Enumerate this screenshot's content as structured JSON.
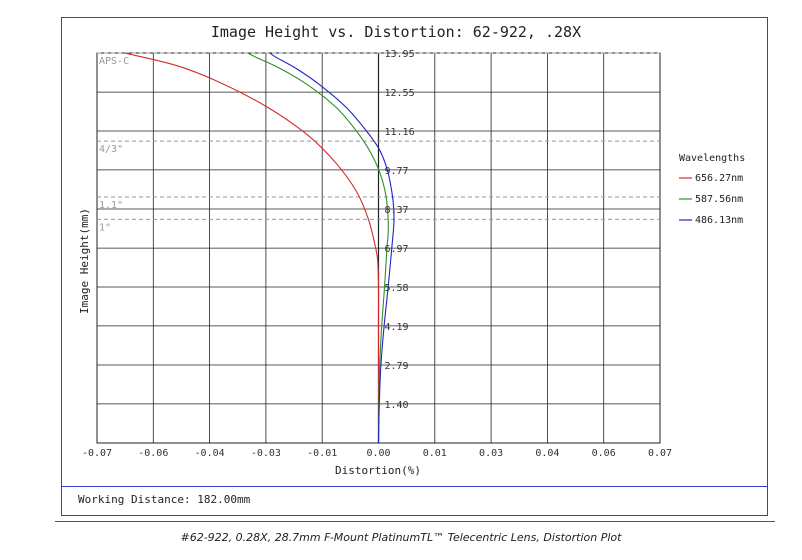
{
  "chart_data": {
    "type": "line",
    "title": "Image Height vs. Distortion: 62-922, .28X",
    "xlabel": "Distortion(%)",
    "ylabel": "Image Height(mm)",
    "xlim": [
      -0.07,
      0.07
    ],
    "ylim": [
      0,
      13.95
    ],
    "x_ticks": [
      -0.07,
      -0.06,
      -0.04,
      -0.03,
      -0.01,
      0.0,
      0.01,
      0.03,
      0.04,
      0.06,
      0.07
    ],
    "x_tick_labels": [
      "-0.07",
      "-0.06",
      "-0.04",
      "-0.03",
      "-0.01",
      "0.00",
      "0.01",
      "0.03",
      "0.04",
      "0.06",
      "0.07"
    ],
    "y_ticks": [
      1.4,
      2.79,
      4.19,
      5.58,
      6.97,
      8.37,
      9.77,
      11.16,
      12.55,
      13.95
    ],
    "y_tick_labels": [
      "1.40",
      "2.79",
      "4.19",
      "5.58",
      "6.97",
      "8.37",
      "9.77",
      "11.16",
      "12.55",
      "13.95"
    ],
    "grid": true,
    "sensor_markers": [
      {
        "label": "APS-C",
        "y": 13.95
      },
      {
        "label": "4/3\"",
        "y": 10.8
      },
      {
        "label": "1.1\"",
        "y": 8.8
      },
      {
        "label": "1\"",
        "y": 8.0
      }
    ],
    "legend": {
      "title": "Wavelengths",
      "position": "right"
    },
    "series": [
      {
        "name": "656.27nm",
        "color": "#d42a2a",
        "points": [
          [
            0,
            0
          ],
          [
            0,
            1.4
          ],
          [
            0,
            2.79
          ],
          [
            0,
            4.19
          ],
          [
            0,
            5.58
          ],
          [
            -0.0002,
            6.5
          ],
          [
            -0.0007,
            6.97
          ],
          [
            -0.0025,
            8.0
          ],
          [
            -0.0055,
            9.0
          ],
          [
            -0.0105,
            10.0
          ],
          [
            -0.0175,
            11.0
          ],
          [
            -0.0275,
            12.0
          ],
          [
            -0.0395,
            12.9
          ],
          [
            -0.0502,
            13.5
          ],
          [
            -0.0632,
            13.95
          ]
        ]
      },
      {
        "name": "587.56nm",
        "color": "#2f8f2f",
        "points": [
          [
            0,
            0
          ],
          [
            0.0001,
            1.4
          ],
          [
            0.0003,
            2.79
          ],
          [
            0.0008,
            4.19
          ],
          [
            0.0015,
            5.58
          ],
          [
            0.0021,
            6.97
          ],
          [
            0.0024,
            7.5
          ],
          [
            0.0024,
            8.0
          ],
          [
            0.0019,
            8.8
          ],
          [
            0.0005,
            9.6
          ],
          [
            -0.002,
            10.4
          ],
          [
            -0.0055,
            11.16
          ],
          [
            -0.0105,
            12.0
          ],
          [
            -0.0175,
            12.8
          ],
          [
            -0.0245,
            13.4
          ],
          [
            -0.0305,
            13.8
          ],
          [
            -0.0325,
            13.95
          ]
        ]
      },
      {
        "name": "486.13nm",
        "color": "#2323c8",
        "points": [
          [
            0,
            0
          ],
          [
            0.0002,
            1.4
          ],
          [
            0.0006,
            2.79
          ],
          [
            0.0014,
            4.19
          ],
          [
            0.0024,
            5.58
          ],
          [
            0.0033,
            6.97
          ],
          [
            0.0038,
            7.8
          ],
          [
            0.0038,
            8.37
          ],
          [
            0.0033,
            9.0
          ],
          [
            0.0022,
            9.77
          ],
          [
            0.0002,
            10.5
          ],
          [
            -0.003,
            11.16
          ],
          [
            -0.008,
            12.0
          ],
          [
            -0.0145,
            12.8
          ],
          [
            -0.0205,
            13.4
          ],
          [
            -0.0255,
            13.8
          ],
          [
            -0.027,
            13.95
          ]
        ]
      }
    ]
  },
  "footer": {
    "working_distance": "Working Distance: 182.00mm"
  },
  "caption": "#62-922, 0.28X, 28.7mm F-Mount PlatinumTL™ Telecentric Lens, Distortion Plot"
}
